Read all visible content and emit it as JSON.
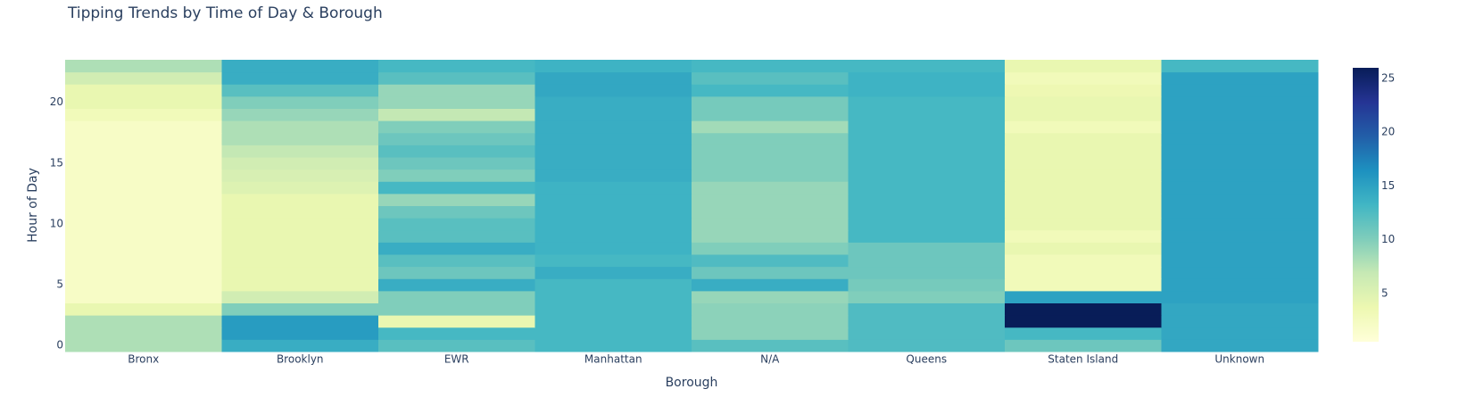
{
  "chart_data": {
    "type": "heatmap",
    "title": "Tipping Trends by Time of Day & Borough",
    "x_label": "Borough",
    "y_label": "Hour of Day",
    "categories": [
      "Bronx",
      "Brooklyn",
      "EWR",
      "Manhattan",
      "N/A",
      "Queens",
      "Staten Island",
      "Unknown"
    ],
    "y": [
      0,
      1,
      2,
      3,
      4,
      5,
      6,
      7,
      8,
      9,
      10,
      11,
      12,
      13,
      14,
      15,
      16,
      17,
      18,
      19,
      20,
      21,
      22,
      23
    ],
    "ylim": [
      -0.5,
      23.5
    ],
    "yticks": [
      0,
      5,
      10,
      15,
      20
    ],
    "zlim": [
      0.5,
      26
    ],
    "colorbar_ticks": [
      5,
      10,
      15,
      20,
      25
    ],
    "colorscale": [
      "#ffffd9",
      "#edf8b1",
      "#c7e9b4",
      "#7fcdbb",
      "#41b6c4",
      "#1d91c0",
      "#225ea8",
      "#253494",
      "#081d58"
    ],
    "z": [
      [
        8,
        14,
        12,
        13,
        12,
        12.5,
        11,
        14.5
      ],
      [
        8,
        15.5,
        13,
        13,
        9.5,
        12.5,
        13,
        14.5
      ],
      [
        8,
        15.5,
        4,
        13,
        9.5,
        12.5,
        26,
        14.5
      ],
      [
        4,
        10,
        10,
        13,
        9.5,
        12.5,
        26,
        14.5
      ],
      [
        2,
        6,
        10,
        13,
        9,
        10,
        15,
        15
      ],
      [
        2,
        4,
        14,
        13,
        14,
        10.5,
        3,
        15
      ],
      [
        2,
        4,
        11,
        14,
        11,
        11,
        3,
        15
      ],
      [
        2,
        4,
        12,
        13,
        12.5,
        11,
        3,
        15
      ],
      [
        2,
        4,
        14,
        13.5,
        10,
        11,
        4,
        15
      ],
      [
        2,
        4,
        12,
        13.5,
        9,
        13,
        3,
        15
      ],
      [
        2,
        4,
        12,
        13.5,
        9,
        13,
        4,
        15
      ],
      [
        2,
        4,
        11,
        13.5,
        9,
        13,
        4,
        15
      ],
      [
        2,
        4,
        9,
        13.5,
        9,
        13,
        4,
        15
      ],
      [
        2,
        5,
        13,
        13.5,
        9,
        13,
        4,
        15
      ],
      [
        2,
        5.5,
        10,
        14,
        10,
        13,
        4,
        15
      ],
      [
        2,
        6,
        11,
        14,
        10,
        13,
        4,
        15
      ],
      [
        2,
        7,
        12,
        14,
        10,
        13,
        4,
        15
      ],
      [
        2,
        8,
        11,
        14,
        10,
        13,
        4,
        15
      ],
      [
        2,
        8,
        10,
        14,
        8.5,
        13,
        3,
        15
      ],
      [
        3,
        9,
        7,
        14,
        10.5,
        13,
        4,
        15
      ],
      [
        4,
        10,
        9,
        14,
        10.5,
        13,
        4,
        15
      ],
      [
        4,
        12,
        9,
        14.5,
        13,
        13.5,
        3.5,
        15
      ],
      [
        6,
        14,
        12,
        14.5,
        12,
        13.5,
        3,
        15
      ],
      [
        8,
        14,
        13,
        13.5,
        13,
        13,
        4,
        13
      ]
    ]
  }
}
